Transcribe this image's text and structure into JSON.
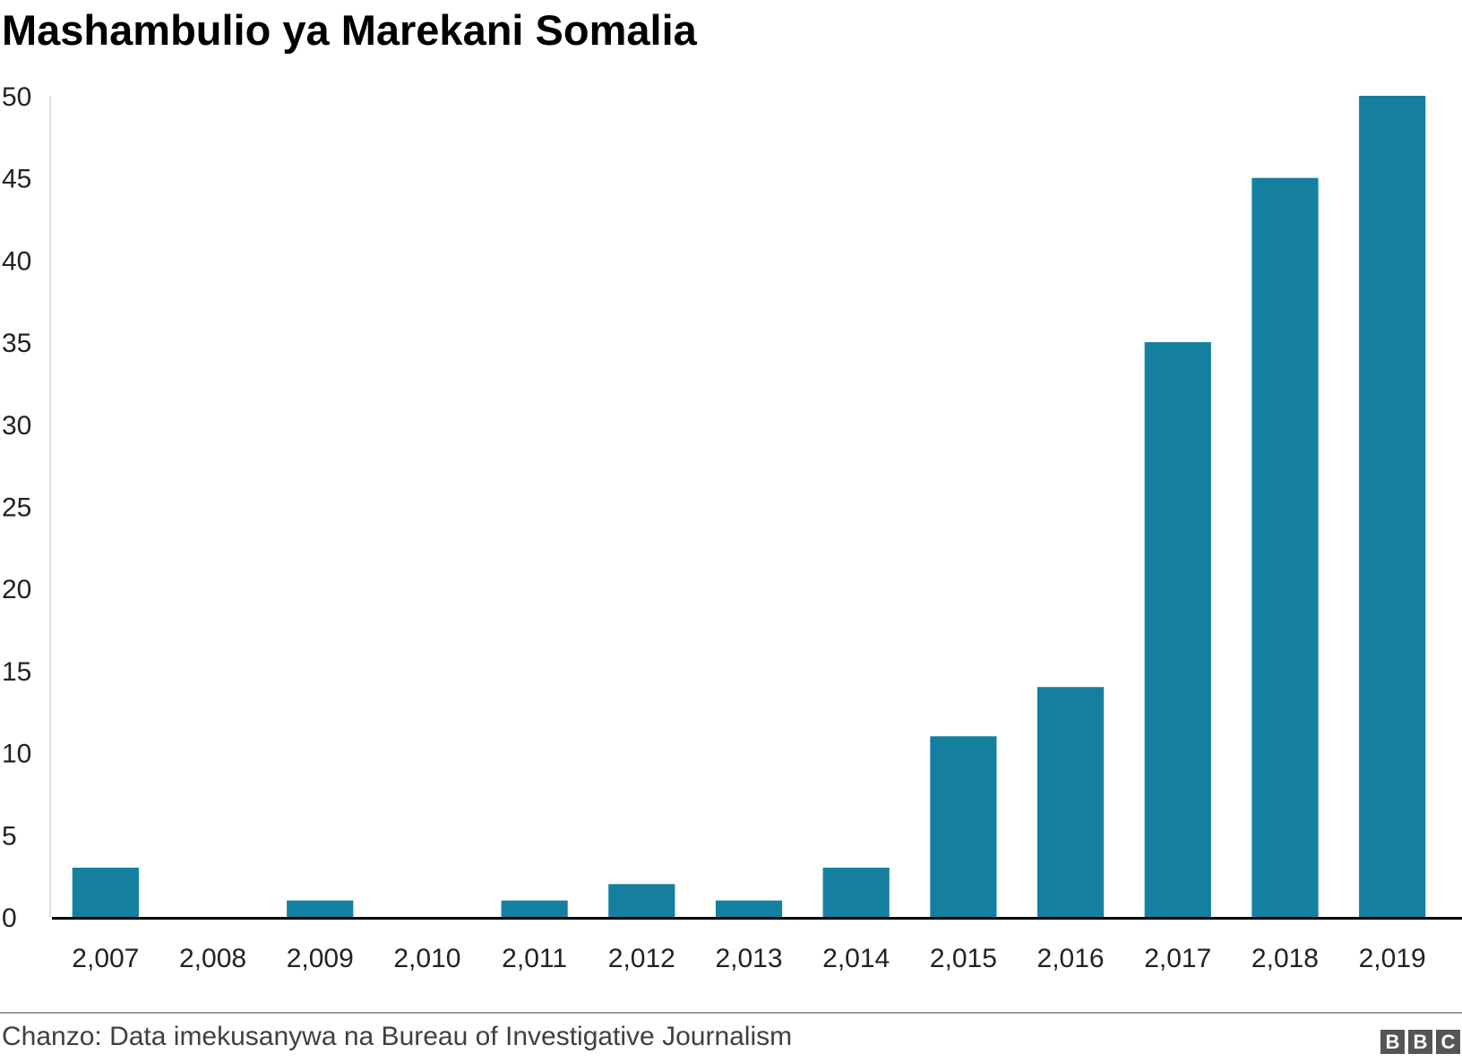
{
  "chart_data": {
    "type": "bar",
    "title": "Mashambulio ya Marekani Somalia",
    "categories": [
      "2,007",
      "2,008",
      "2,009",
      "2,010",
      "2,011",
      "2,012",
      "2,013",
      "2,014",
      "2,015",
      "2,016",
      "2,017",
      "2,018",
      "2,019"
    ],
    "values": [
      3,
      0,
      1,
      0,
      1,
      2,
      1,
      3,
      11,
      14,
      35,
      45,
      50
    ],
    "ylim": [
      0,
      50
    ],
    "yticks": [
      0,
      5,
      10,
      15,
      20,
      25,
      30,
      35,
      40,
      45,
      50
    ],
    "xlabel": "",
    "ylabel": "",
    "grid": false,
    "legend": "none",
    "bar_color": "#157fa0",
    "axis_color": "#000000"
  },
  "footer": {
    "source": "Chanzo: Data imekusanywa na Bureau of Investigative Journalism",
    "logo_letters": [
      "B",
      "B",
      "C"
    ]
  }
}
